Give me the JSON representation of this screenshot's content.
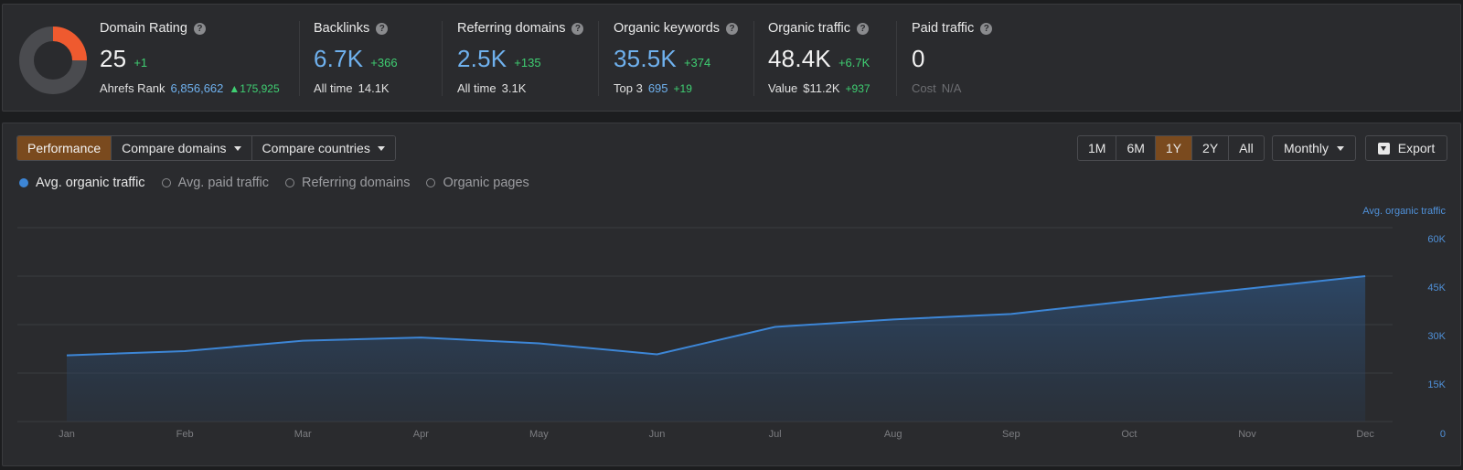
{
  "metrics": [
    {
      "title": "Domain Rating",
      "value": "25",
      "delta": "+1",
      "sub_label": "Ahrefs Rank",
      "sub_value": "6,856,662",
      "sub_delta": "▲175,925"
    },
    {
      "title": "Backlinks",
      "value": "6.7K",
      "delta": "+366",
      "sub_label": "All time",
      "sub_value": "14.1K"
    },
    {
      "title": "Referring domains",
      "value": "2.5K",
      "delta": "+135",
      "sub_label": "All time",
      "sub_value": "3.1K"
    },
    {
      "title": "Organic keywords",
      "value": "35.5K",
      "delta": "+374",
      "sub_label": "Top 3",
      "sub_value": "695",
      "sub_delta": "+19"
    },
    {
      "title": "Organic traffic",
      "value": "48.4K",
      "delta": "+6.7K",
      "sub_label": "Value",
      "sub_value": "$11.2K",
      "sub_delta": "+937"
    },
    {
      "title": "Paid traffic",
      "value": "0",
      "sub_label": "Cost",
      "sub_value": "N/A"
    }
  ],
  "domain_rating_fraction": 0.25,
  "help_icon_glyph": "?",
  "toolbar": {
    "tabs": [
      "Performance",
      "Compare domains",
      "Compare countries"
    ],
    "ranges": [
      "1M",
      "6M",
      "1Y",
      "2Y",
      "All"
    ],
    "active_range": "1Y",
    "granularity": "Monthly",
    "export_label": "Export"
  },
  "legend": [
    "Avg. organic traffic",
    "Avg. paid traffic",
    "Referring domains",
    "Organic pages"
  ],
  "colors": {
    "accent": "#7a4a1e",
    "line": "#3d86d6",
    "positive": "#3fcf72",
    "link": "#6fb1ee"
  },
  "chart_data": {
    "type": "area",
    "series_label": "Avg. organic traffic",
    "categories": [
      "Jan",
      "Feb",
      "Mar",
      "Apr",
      "May",
      "Jun",
      "Jul",
      "Aug",
      "Sep",
      "Oct",
      "Nov",
      "Dec"
    ],
    "series": [
      {
        "name": "Avg. organic traffic",
        "values": [
          20500,
          21800,
          25000,
          26000,
          24200,
          20800,
          29300,
          31600,
          33300,
          37300,
          41100,
          45000
        ]
      }
    ],
    "y_ticks": [
      "0",
      "15K",
      "30K",
      "45K",
      "60K"
    ],
    "ylim": [
      0,
      60000
    ],
    "grid": true
  }
}
